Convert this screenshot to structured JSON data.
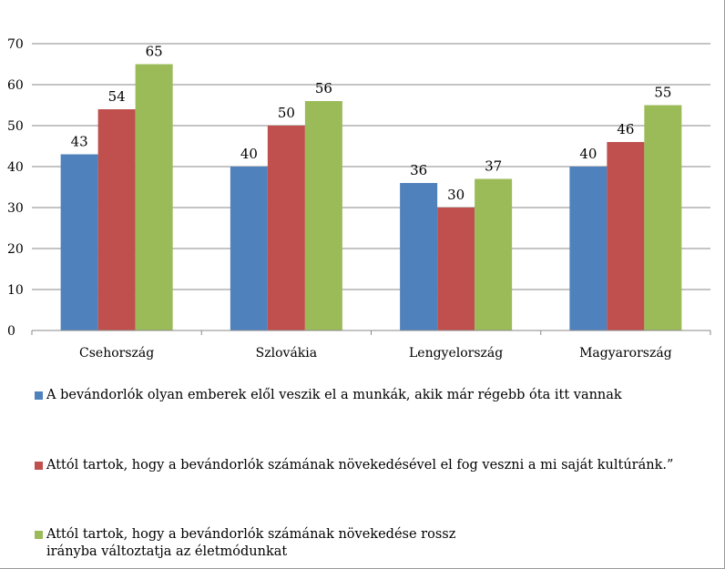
{
  "chart_data": {
    "type": "bar",
    "categories": [
      "Csehország",
      "Szlovákia",
      "Lengyelország",
      "Magyarország"
    ],
    "series": [
      {
        "name": "A bevándorlók olyan emberek elől veszik el a munkák, akik már régebb óta itt vannak",
        "values": [
          43,
          40,
          36,
          40
        ],
        "color": "#4f81bd"
      },
      {
        "name": "Attól tartok, hogy a bevándorlók számának növekedésével el fog veszni a mi saját kultúránk.”",
        "values": [
          54,
          50,
          30,
          46
        ],
        "color": "#c0504d"
      },
      {
        "name": "Attól tartok, hogy a bevándorlók számának növekedése rossz irányba változtatja az életmódunkat",
        "values": [
          65,
          56,
          37,
          55
        ],
        "color": "#9bbb59"
      }
    ],
    "ylim": [
      0,
      70
    ],
    "yticks": [
      0,
      10,
      20,
      30,
      40,
      50,
      60,
      70
    ],
    "grid": true,
    "legend_position": "bottom"
  }
}
